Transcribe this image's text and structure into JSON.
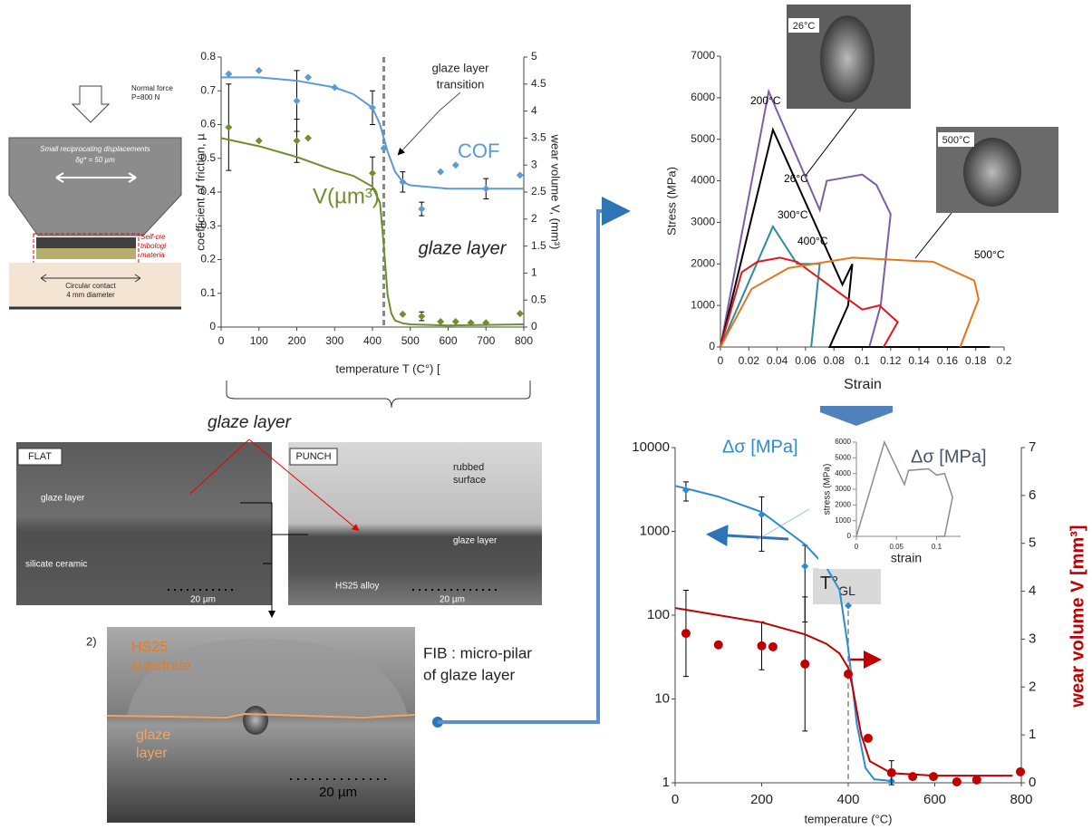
{
  "chart_data": [
    {
      "type": "scatter",
      "xlabel": "temperature T (C°) [",
      "ylabel": "coefficient of friction, µ",
      "y2label": "wear volume V, (mm³)",
      "xlim": [
        0,
        800
      ],
      "xticks": [
        0,
        100,
        200,
        300,
        400,
        500,
        600,
        700,
        800
      ],
      "ylim": [
        0,
        0.8
      ],
      "yticks": [
        0,
        0.1,
        0.2,
        0.3,
        0.4,
        0.5,
        0.6,
        0.7,
        0.8
      ],
      "y2lim": [
        0,
        5
      ],
      "y2ticks": [
        0,
        0.5,
        1,
        1.5,
        2,
        2.5,
        3,
        3.5,
        4,
        4.5,
        5
      ],
      "transition": 430,
      "annotations": [
        "glaze layer",
        "transition",
        "glaze layer"
      ],
      "series": [
        {
          "name": "COF",
          "color": "#5b9bd5",
          "marker": "diamond",
          "x": [
            20,
            100,
            200,
            230,
            300,
            400,
            430,
            480,
            530,
            580,
            620,
            700,
            790
          ],
          "values": [
            0.75,
            0.76,
            0.67,
            0.74,
            0.71,
            0.65,
            0.53,
            0.43,
            0.35,
            0.46,
            0.48,
            0.41,
            0.45
          ],
          "errors": [
            null,
            null,
            0.09,
            null,
            null,
            0.05,
            null,
            0.03,
            0.02,
            null,
            null,
            0.03,
            null
          ]
        },
        {
          "color": "#5b9bd5",
          "x": [
            0,
            100,
            200,
            300,
            350,
            400,
            420,
            440,
            460,
            480,
            500,
            600,
            800
          ],
          "values": [
            0.74,
            0.74,
            0.73,
            0.71,
            0.69,
            0.65,
            0.6,
            0.52,
            0.46,
            0.43,
            0.42,
            0.41,
            0.41
          ]
        },
        {
          "name": "V(µm³)",
          "color": "#6f8f2e",
          "marker": "diamond",
          "axis": "y2",
          "x": [
            20,
            100,
            200,
            230,
            400,
            480,
            530,
            580,
            620,
            660,
            700,
            790
          ],
          "values": [
            3.7,
            3.45,
            3.45,
            3.5,
            2.85,
            0.24,
            0.2,
            0.1,
            0.1,
            0.08,
            0.08,
            0.25
          ],
          "errors": [
            0.8,
            null,
            0.4,
            null,
            0.3,
            null,
            0.08,
            null,
            null,
            null,
            null,
            null
          ]
        },
        {
          "color": "#6f8f2e",
          "axis": "y2",
          "x": [
            0,
            100,
            200,
            300,
            350,
            400,
            420,
            430,
            440,
            450,
            460,
            480,
            500,
            600,
            800
          ],
          "values": [
            3.5,
            3.35,
            3.15,
            2.9,
            2.8,
            2.6,
            2.3,
            1.5,
            0.6,
            0.25,
            0.12,
            0.07,
            0.05,
            0.03,
            0.05
          ]
        }
      ]
    },
    {
      "type": "line",
      "xlabel": "Strain",
      "ylabel": "Stress (MPa)",
      "xlim": [
        0,
        0.2
      ],
      "xticks": [
        0,
        0.02,
        0.04,
        0.06,
        0.08,
        0.1,
        0.12,
        0.14,
        0.16,
        0.18,
        0.2
      ],
      "ylim": [
        0,
        7000
      ],
      "yticks": [
        0,
        1000,
        2000,
        3000,
        4000,
        5000,
        6000,
        7000
      ],
      "series": [
        {
          "name": "200°C",
          "color": "#7b5ea7",
          "x": [
            0,
            0.034,
            0.07,
            0.075,
            0.1,
            0.11,
            0.12,
            0.113,
            0.105
          ],
          "values": [
            0,
            6150,
            3300,
            4000,
            4150,
            3900,
            3200,
            1000,
            0
          ]
        },
        {
          "name": "26°C",
          "color": "#000000",
          "x": [
            0,
            0.037,
            0.086,
            0.093,
            0.09,
            0.077,
            0.19
          ],
          "values": [
            0,
            5230,
            1500,
            2000,
            1000,
            0,
            0
          ]
        },
        {
          "name": "300°C",
          "color": "#2a8d99",
          "x": [
            0,
            0.037,
            0.054,
            0.07,
            0.064
          ],
          "values": [
            0,
            2900,
            2000,
            2000,
            0
          ]
        },
        {
          "name": "400°C",
          "color": "#e8141b",
          "x": [
            0,
            0.015,
            0.026,
            0.042,
            0.054,
            0.08,
            0.1,
            0.112,
            0.125,
            0.115
          ],
          "values": [
            0,
            1800,
            2050,
            2150,
            2050,
            1400,
            900,
            1000,
            600,
            0
          ]
        },
        {
          "name": "500°C",
          "color": "#e8741c",
          "x": [
            0,
            0.022,
            0.048,
            0.093,
            0.15,
            0.179,
            0.182,
            0.169
          ],
          "values": [
            0,
            1400,
            1900,
            2150,
            2050,
            1600,
            1150,
            0
          ]
        }
      ]
    },
    {
      "type": "scatter",
      "xlabel": "temperature (°C)",
      "y2label": "wear volume  V [mm³]",
      "ylog": true,
      "xlim": [
        0,
        800
      ],
      "xticks": [
        0,
        200,
        400,
        600,
        800
      ],
      "ylim": [
        1,
        10000
      ],
      "yticks": [
        1,
        10,
        100,
        1000,
        10000
      ],
      "y2lim": [
        0,
        7
      ],
      "y2ticks": [
        0,
        1,
        2,
        3,
        4,
        5,
        6,
        7
      ],
      "transition": 400,
      "transition_label": {
        "main": "T°",
        "sub": "GL"
      },
      "series": [
        {
          "name": "Δσ [MPa]",
          "color": "#2e8bd0",
          "marker": "diamond",
          "x": [
            25,
            200,
            300,
            400,
            500
          ],
          "values": [
            3100,
            1580,
            383,
            130,
            1.05
          ],
          "errors": [
            800,
            1000,
            300,
            null,
            null
          ]
        },
        {
          "color": "#2e8bd0",
          "x": [
            0,
            100,
            200,
            300,
            350,
            380,
            400,
            420,
            440,
            460,
            500
          ],
          "values": [
            3500,
            2600,
            1700,
            700,
            370,
            200,
            40,
            5,
            1.5,
            1.1,
            1.05
          ]
        },
        {
          "color": "#c00000",
          "marker": "circle",
          "axis": "y2",
          "x": [
            25,
            100,
            200,
            226,
            300,
            400,
            446,
            500,
            549,
            597,
            651,
            697,
            798
          ],
          "values": [
            3.12,
            2.88,
            2.86,
            2.84,
            2.48,
            2.27,
            0.93,
            0.21,
            0.13,
            0.13,
            0.02,
            0.06,
            0.23
          ],
          "errors": [
            0.9,
            null,
            0.5,
            null,
            1.4,
            null,
            null,
            0.25,
            null,
            null,
            null,
            null,
            null
          ]
        },
        {
          "color": "#c00000",
          "axis": "y2",
          "x": [
            0,
            100,
            200,
            300,
            350,
            380,
            400,
            410,
            420,
            430,
            450,
            500,
            600,
            700,
            780
          ],
          "values": [
            3.65,
            3.5,
            3.35,
            3.1,
            2.9,
            2.7,
            2.4,
            2.0,
            1.5,
            1.0,
            0.45,
            0.2,
            0.15,
            0.15,
            0.15
          ]
        }
      ]
    },
    {
      "type": "line",
      "xlabel": "strain",
      "ylabel": "stress (MPa)",
      "annotation": "Δσ [MPa]",
      "xlim": [
        0,
        0.13
      ],
      "xticks": [
        0,
        0.05,
        0.1
      ],
      "ylim": [
        0,
        6000
      ],
      "yticks": [
        0,
        1000,
        2000,
        3000,
        4000,
        5000,
        6000
      ],
      "series": [
        {
          "color": "#8c8c8c",
          "x": [
            0,
            0.035,
            0.06,
            0.065,
            0.09,
            0.1,
            0.11,
            0.12,
            0.11,
            0.1
          ],
          "values": [
            0,
            6000,
            3300,
            4200,
            4300,
            3900,
            4000,
            2500,
            0,
            0
          ]
        }
      ]
    }
  ],
  "schematic": {
    "force": "Normal force",
    "load": "P=800 N",
    "displacement_title": "Small reciprocating displacements",
    "displacement": "δg* = 50 µm",
    "material": [
      "Self-cre",
      "tribologi",
      "materia"
    ],
    "contact": "Circular contact",
    "diameter": "4 mm diameter"
  },
  "micrographs": {
    "heading": "glaze layer",
    "flat": {
      "tag": "FLAT",
      "glaze": "glaze layer",
      "ceramic": "silicate ceramic",
      "scale": "20 µm"
    },
    "punch": {
      "tag": "PUNCH",
      "surface": [
        "rubbed",
        "surface"
      ],
      "glaze": "glaze layer",
      "alloy": "HS25 alloy",
      "scale": "20 µm"
    },
    "fib": {
      "panel": "2)",
      "substrate": [
        "HS25",
        "substrate"
      ],
      "glaze": [
        "glaze",
        "layer"
      ],
      "scale": "20 µm",
      "caption": [
        "FIB : micro-pilar",
        "of glaze layer"
      ]
    },
    "pillars": [
      "26°C",
      "500°C"
    ]
  }
}
